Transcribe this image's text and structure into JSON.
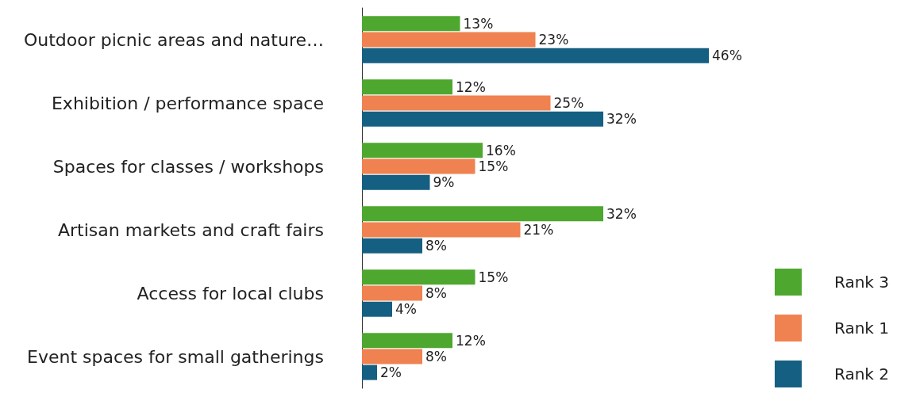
{
  "chart_data": {
    "type": "bar",
    "orientation": "horizontal",
    "categories": [
      "Outdoor picnic areas and nature…",
      "Exhibition / performance space",
      "Spaces for classes / workshops",
      "Artisan markets and craft fairs",
      "Access for local clubs",
      "Event spaces for small gatherings"
    ],
    "series": [
      {
        "name": "Rank 3",
        "color": "#4ea72e",
        "values": [
          13,
          12,
          16,
          32,
          15,
          12
        ],
        "value_labels": [
          "13%",
          "12%",
          "16%",
          "32%",
          "15%",
          "12%"
        ]
      },
      {
        "name": "Rank 1",
        "color": "#ef8250",
        "values": [
          23,
          25,
          15,
          21,
          8,
          8
        ],
        "value_labels": [
          "23%",
          "25%",
          "15%",
          "21%",
          "8%",
          "8%"
        ]
      },
      {
        "name": "Rank 2",
        "color": "#156082",
        "values": [
          46,
          32,
          9,
          8,
          4,
          2
        ],
        "value_labels": [
          "46%",
          "32%",
          "9%",
          "8%",
          "4%",
          "2%"
        ]
      }
    ],
    "xlim": [
      0,
      46
    ],
    "tick_labels": "y",
    "legend": "bottom right"
  }
}
